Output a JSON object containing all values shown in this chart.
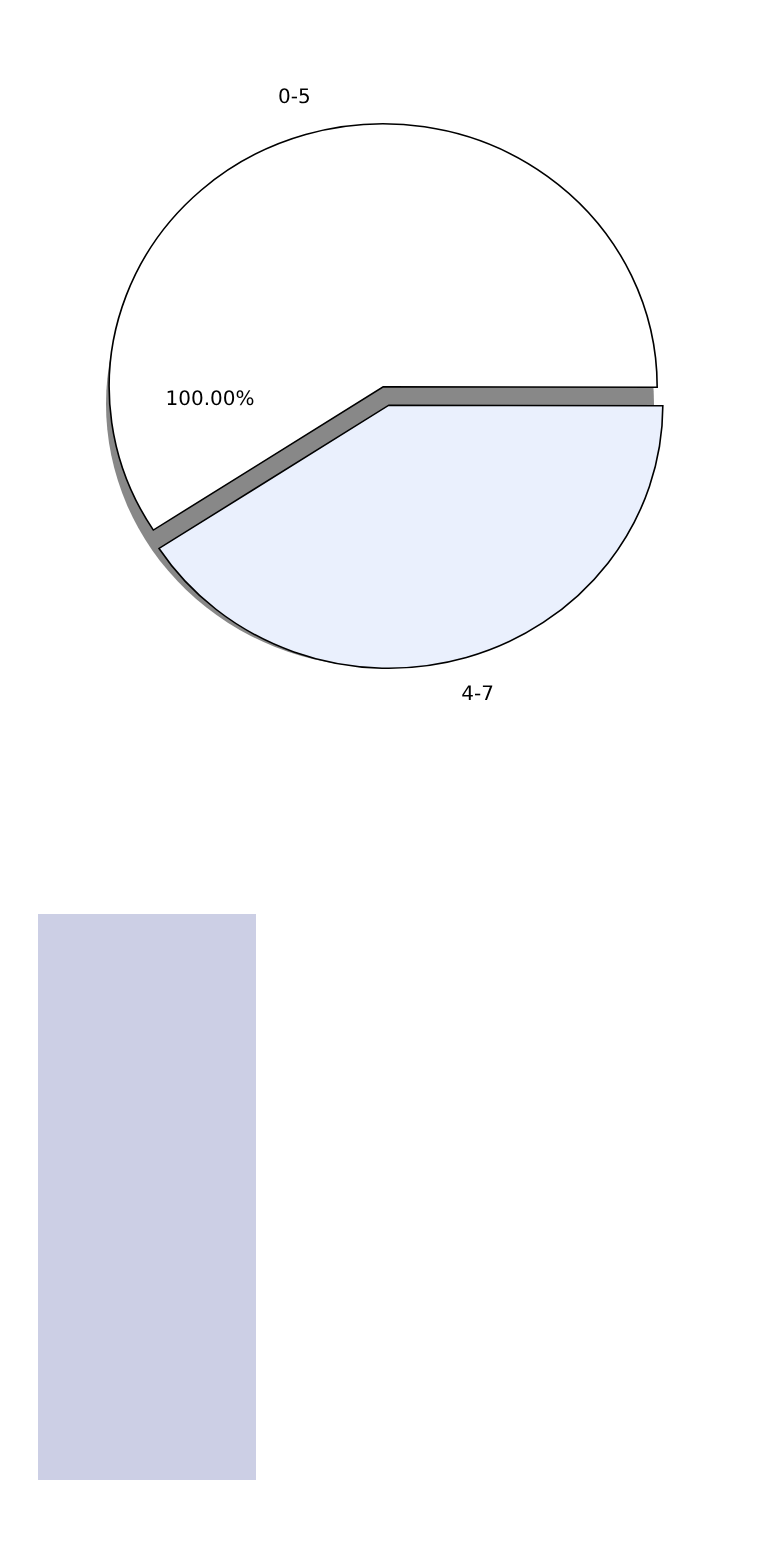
{
  "chart_data": {
    "type": "pie",
    "categories": [
      "0-5",
      "4-7"
    ],
    "values": [
      59.2,
      40.8
    ],
    "colors": [
      "#ffffff",
      "#eaf0fd"
    ],
    "annotations": [
      "100.00%"
    ]
  }
}
